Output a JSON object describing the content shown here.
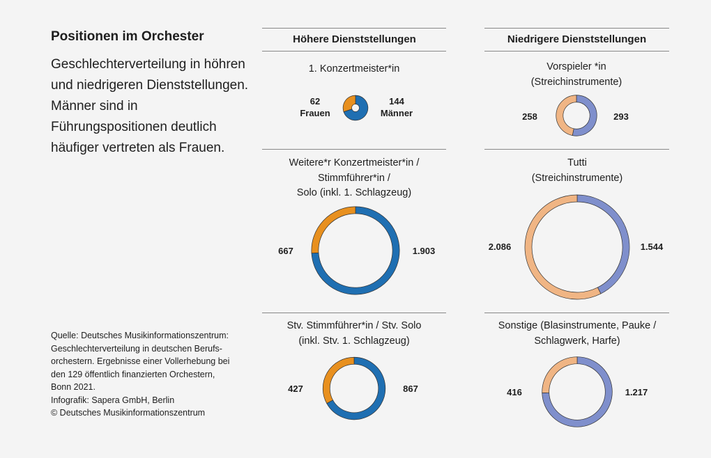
{
  "title": "Positionen im Orchester",
  "description": "Geschlechterverteilung in höhren und niedrigeren Dienststellungen. Männer sind in Führungspositionen deutlich häufiger vertreten als Frauen.",
  "source_lines": [
    "Quelle: Deutsches Musikinformationszentrum:",
    "Geschlechterverteilung in deutschen Berufs-",
    "orchestern. Ergebnisse einer Vollerhebung bei",
    "den 129 öffentlich finanzierten Orchestern,",
    "Bonn 2021.",
    "Infografik: Sapera GmbH, Berlin",
    "© Deutsches Musikinformationszentrum"
  ],
  "columns": [
    "Höhere Dienststellungen",
    "Niedrigere Dienststellungen"
  ],
  "legend": {
    "women": "Frauen",
    "men": "Männer"
  },
  "colors": {
    "higher_women": "#e8901f",
    "higher_men": "#1f6fb2",
    "lower_women": "#f0b584",
    "lower_men": "#7f8fcc",
    "background": "#f4f4f4"
  },
  "chart_data": [
    {
      "type": "pie",
      "variant": "donut",
      "column": "Höhere Dienststellungen",
      "title": [
        "1. Konzertmeister*in"
      ],
      "series": [
        {
          "name": "Frauen",
          "value": 62,
          "label": "62"
        },
        {
          "name": "Männer",
          "value": 144,
          "label": "144"
        }
      ]
    },
    {
      "type": "pie",
      "variant": "donut",
      "column": "Höhere Dienststellungen",
      "title": [
        "Weitere*r Konzertmeister*in /",
        "Stimmführer*in /",
        "Solo (inkl. 1. Schlagzeug)"
      ],
      "series": [
        {
          "name": "Frauen",
          "value": 667,
          "label": "667"
        },
        {
          "name": "Männer",
          "value": 1903,
          "label": "1.903"
        }
      ]
    },
    {
      "type": "pie",
      "variant": "donut",
      "column": "Höhere Dienststellungen",
      "title": [
        "Stv. Stimmführer*in / Stv. Solo",
        "(inkl. Stv. 1. Schlagzeug)"
      ],
      "series": [
        {
          "name": "Frauen",
          "value": 427,
          "label": "427"
        },
        {
          "name": "Männer",
          "value": 867,
          "label": "867"
        }
      ]
    },
    {
      "type": "pie",
      "variant": "donut",
      "column": "Niedrigere Dienststellungen",
      "title": [
        "Vorspieler *in",
        "(Streichinstrumente)"
      ],
      "series": [
        {
          "name": "Frauen",
          "value": 258,
          "label": "258"
        },
        {
          "name": "Männer",
          "value": 293,
          "label": "293"
        }
      ]
    },
    {
      "type": "pie",
      "variant": "donut",
      "column": "Niedrigere Dienststellungen",
      "title": [
        "Tutti",
        "(Streichinstrumente)"
      ],
      "series": [
        {
          "name": "Frauen",
          "value": 2086,
          "label": "2.086"
        },
        {
          "name": "Männer",
          "value": 1544,
          "label": "1.544"
        }
      ]
    },
    {
      "type": "pie",
      "variant": "donut",
      "column": "Niedrigere Dienststellungen",
      "title": [
        "Sonstige (Blasinstrumente, Pauke /",
        "Schlagwerk, Harfe)"
      ],
      "series": [
        {
          "name": "Frauen",
          "value": 416,
          "label": "416"
        },
        {
          "name": "Männer",
          "value": 1217,
          "label": "1.217"
        }
      ]
    }
  ]
}
